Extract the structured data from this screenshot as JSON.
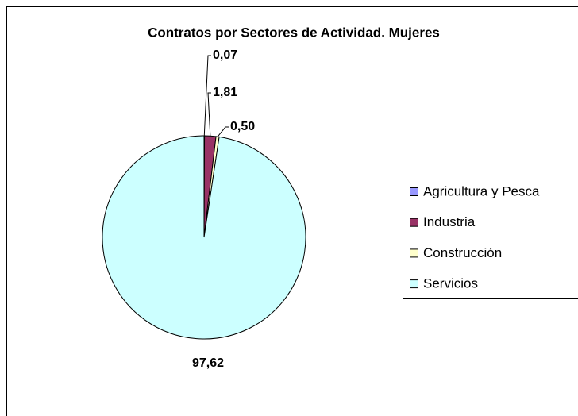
{
  "chart_data": {
    "type": "pie",
    "title": "Contratos por Sectores de Actividad. Mujeres",
    "categories": [
      "Agricultura y Pesca",
      "Industria",
      "Construcción",
      "Servicios"
    ],
    "values": [
      0.07,
      1.81,
      0.5,
      97.62
    ],
    "value_labels": [
      "0,07",
      "1,81",
      "0,50",
      "97,62"
    ],
    "colors": [
      "#9999ff",
      "#993366",
      "#ffffcc",
      "#ccffff"
    ],
    "legend": "right"
  }
}
